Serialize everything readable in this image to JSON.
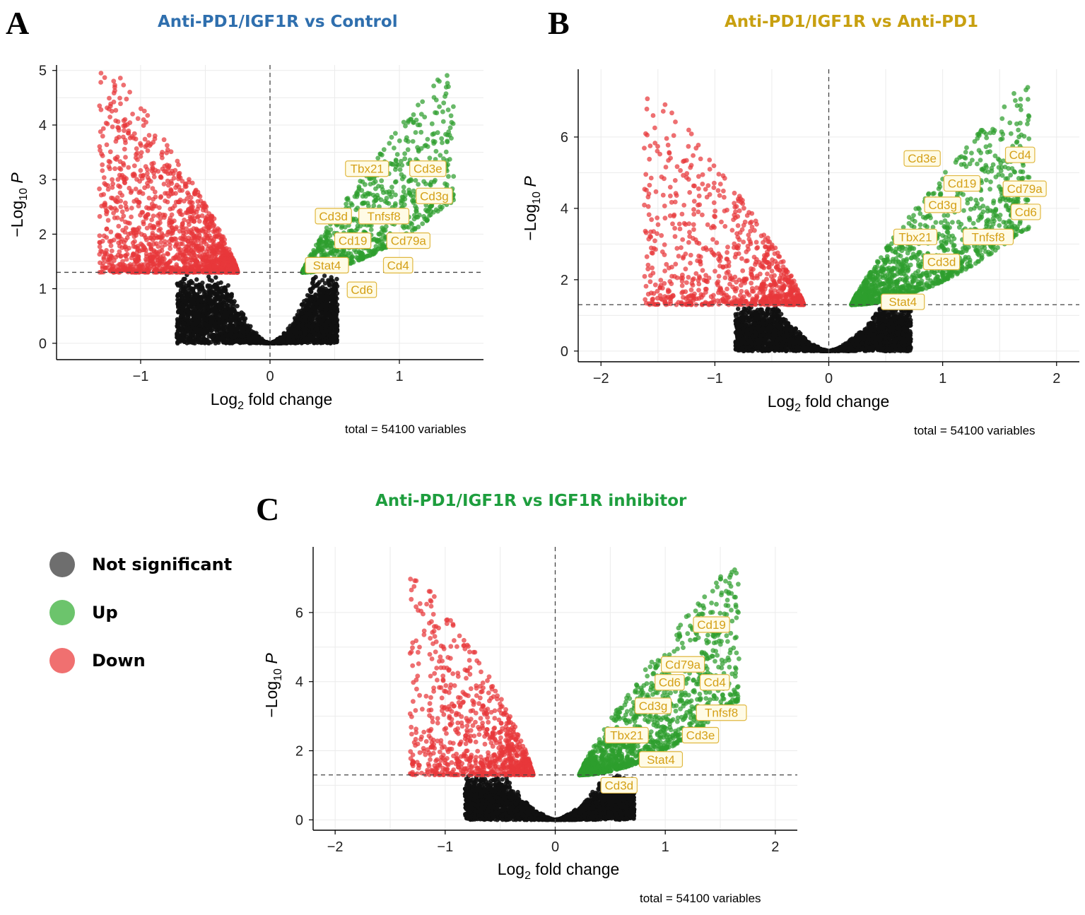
{
  "legend": {
    "items": [
      {
        "label": "Not significant",
        "color": "#6e6e6e"
      },
      {
        "label": "Up",
        "color": "#6cc46c"
      },
      {
        "label": "Down",
        "color": "#f07070"
      }
    ]
  },
  "colors": {
    "ns": "#111111",
    "up": "#2e9e2e",
    "down": "#e8383a",
    "label_box": "#fffbe6",
    "label_border": "#e0b840",
    "label_text": "#d4a017"
  },
  "chart_data": [
    {
      "type": "scatter",
      "panel": "A",
      "title": "Anti-PD1/IGF1R vs Control",
      "title_color": "#2f6fae",
      "xlabel": "Log2 fold change",
      "ylabel": "-Log10 P",
      "xlim": [
        -1.65,
        1.65
      ],
      "ylim": [
        -0.3,
        5.1
      ],
      "xticks": [
        -1,
        0,
        1
      ],
      "yticks": [
        0,
        1,
        2,
        3,
        4,
        5
      ],
      "p_threshold": 1.3,
      "fc_threshold": 0.25,
      "total": "total = 54100 variables",
      "down_shape": {
        "xmin": -1.32,
        "xmax": -0.25,
        "ymax": 5.0
      },
      "up_shape": {
        "xmin": 0.25,
        "xmax": 1.42,
        "ymax": 5.0
      },
      "ns_curvature": 8.5,
      "labels": [
        {
          "text": "Tbx21",
          "x": 0.75,
          "y": 3.2
        },
        {
          "text": "Cd3e",
          "x": 1.22,
          "y": 3.2
        },
        {
          "text": "Cd3g",
          "x": 1.27,
          "y": 2.7
        },
        {
          "text": "Cd3d",
          "x": 0.49,
          "y": 2.33
        },
        {
          "text": "Tnfsf8",
          "x": 0.88,
          "y": 2.33
        },
        {
          "text": "Cd19",
          "x": 0.64,
          "y": 1.88
        },
        {
          "text": "Cd79a",
          "x": 1.07,
          "y": 1.88
        },
        {
          "text": "Stat4",
          "x": 0.44,
          "y": 1.43
        },
        {
          "text": "Cd4",
          "x": 0.99,
          "y": 1.43
        },
        {
          "text": "Cd6",
          "x": 0.71,
          "y": 0.98
        }
      ]
    },
    {
      "type": "scatter",
      "panel": "B",
      "title": "Anti-PD1/IGF1R vs Anti-PD1",
      "title_color": "#c8a010",
      "xlabel": "Log2 fold change",
      "ylabel": "-Log10 P",
      "xlim": [
        -2.2,
        2.2
      ],
      "ylim": [
        -0.3,
        7.9
      ],
      "xticks": [
        -2,
        -1,
        0,
        1,
        2
      ],
      "yticks": [
        0,
        2,
        4,
        6
      ],
      "p_threshold": 1.3,
      "fc_threshold": 0.2,
      "total": "total = 54100 variables",
      "down_shape": {
        "xmin": -1.62,
        "xmax": -0.22,
        "ymax": 7.1
      },
      "up_shape": {
        "xmin": 0.2,
        "xmax": 1.76,
        "ymax": 7.4
      },
      "ns_curvature": 4.6,
      "labels": [
        {
          "text": "Cd3e",
          "x": 0.82,
          "y": 5.4
        },
        {
          "text": "Cd4",
          "x": 1.68,
          "y": 5.5
        },
        {
          "text": "Cd19",
          "x": 1.17,
          "y": 4.7
        },
        {
          "text": "Cd79a",
          "x": 1.72,
          "y": 4.55
        },
        {
          "text": "Cd3g",
          "x": 1.0,
          "y": 4.1
        },
        {
          "text": "Cd6",
          "x": 1.73,
          "y": 3.9
        },
        {
          "text": "Tbx21",
          "x": 0.76,
          "y": 3.2
        },
        {
          "text": "Tnfsf8",
          "x": 1.4,
          "y": 3.2
        },
        {
          "text": "Cd3d",
          "x": 0.99,
          "y": 2.5
        },
        {
          "text": "Stat4",
          "x": 0.65,
          "y": 1.38
        }
      ]
    },
    {
      "type": "scatter",
      "panel": "C",
      "title": "Anti-PD1/IGF1R vs IGF1R inhibitor",
      "title_color": "#1e9e3e",
      "xlabel": "Log2 fold change",
      "ylabel": "-Log10 P",
      "xlim": [
        -2.2,
        2.2
      ],
      "ylim": [
        -0.3,
        7.9
      ],
      "xticks": [
        -2,
        -1,
        0,
        1,
        2
      ],
      "yticks": [
        0,
        2,
        4,
        6
      ],
      "p_threshold": 1.3,
      "fc_threshold": 0.2,
      "total": "total = 54100 variables",
      "down_shape": {
        "xmin": -1.32,
        "xmax": -0.2,
        "ymax": 7.2
      },
      "up_shape": {
        "xmin": 0.22,
        "xmax": 1.68,
        "ymax": 7.5
      },
      "ns_curvature": 4.6,
      "labels": [
        {
          "text": "Cd19",
          "x": 1.42,
          "y": 5.65
        },
        {
          "text": "Cd79a",
          "x": 1.16,
          "y": 4.5
        },
        {
          "text": "Cd6",
          "x": 1.04,
          "y": 3.98
        },
        {
          "text": "Cd4",
          "x": 1.45,
          "y": 3.98
        },
        {
          "text": "Cd3g",
          "x": 0.89,
          "y": 3.3
        },
        {
          "text": "Tnfsf8",
          "x": 1.51,
          "y": 3.1
        },
        {
          "text": "Tbx21",
          "x": 0.65,
          "y": 2.45
        },
        {
          "text": "Cd3e",
          "x": 1.32,
          "y": 2.45
        },
        {
          "text": "Stat4",
          "x": 0.96,
          "y": 1.75
        },
        {
          "text": "Cd3d",
          "x": 0.58,
          "y": 1.0
        }
      ]
    }
  ]
}
